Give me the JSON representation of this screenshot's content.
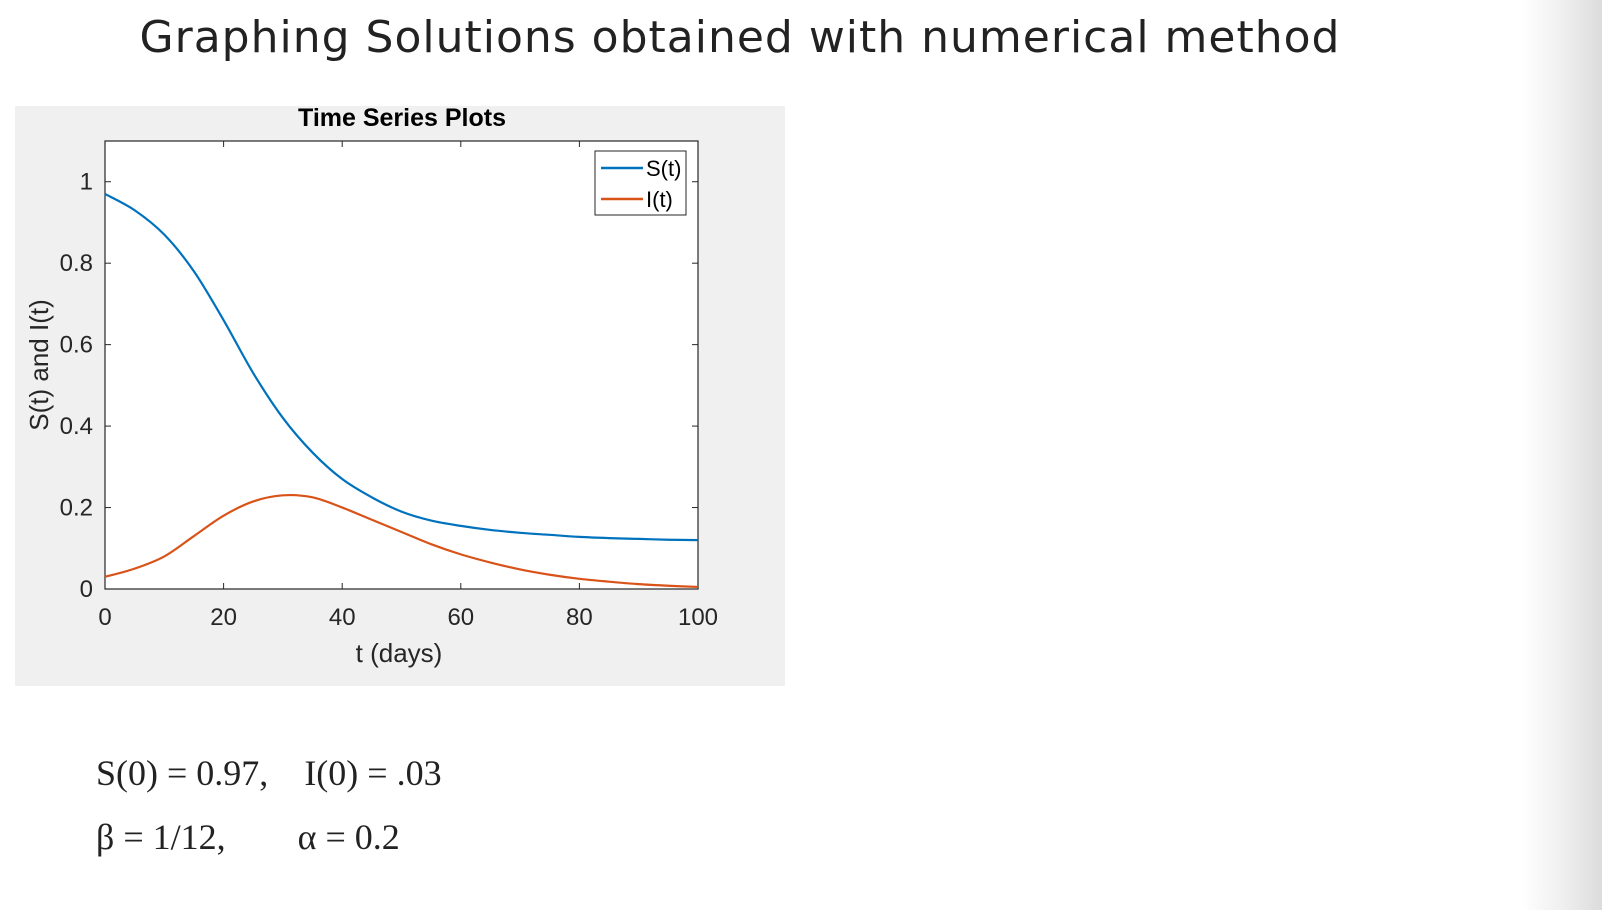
{
  "slide": {
    "title": "Graphing Solutions obtained with numerical method"
  },
  "chart_data": {
    "type": "line",
    "title": "Time Series Plots",
    "xlabel": "t (days)",
    "ylabel": "S(t) and I(t)",
    "xlim": [
      0,
      100
    ],
    "ylim": [
      0,
      1.1
    ],
    "xticks": [
      0,
      20,
      40,
      60,
      80,
      100
    ],
    "yticks": [
      0,
      0.2,
      0.4,
      0.6,
      0.8,
      1
    ],
    "ytick_labels": [
      "0",
      "0.2",
      "0.4",
      "0.6",
      "0.8",
      "1"
    ],
    "grid": false,
    "legend_position": "top-right",
    "x": [
      0,
      5,
      10,
      15,
      20,
      25,
      30,
      35,
      40,
      45,
      50,
      55,
      60,
      65,
      70,
      75,
      80,
      85,
      90,
      95,
      100
    ],
    "series": [
      {
        "name": "S(t)",
        "color": "#0072bd",
        "values": [
          0.97,
          0.93,
          0.87,
          0.78,
          0.66,
          0.53,
          0.42,
          0.335,
          0.27,
          0.225,
          0.19,
          0.168,
          0.155,
          0.145,
          0.138,
          0.133,
          0.128,
          0.125,
          0.123,
          0.121,
          0.12
        ]
      },
      {
        "name": "I(t)",
        "color": "#d95319",
        "values": [
          0.03,
          0.05,
          0.08,
          0.13,
          0.18,
          0.215,
          0.23,
          0.225,
          0.2,
          0.17,
          0.14,
          0.11,
          0.085,
          0.065,
          0.048,
          0.035,
          0.025,
          0.018,
          0.012,
          0.008,
          0.005
        ]
      }
    ]
  },
  "parameters": {
    "line1_s0": "S(0) = 0.97,",
    "line1_i0": "I(0) = .03",
    "line2_beta": "β = 1/12,",
    "line2_alpha": "α = 0.2"
  }
}
